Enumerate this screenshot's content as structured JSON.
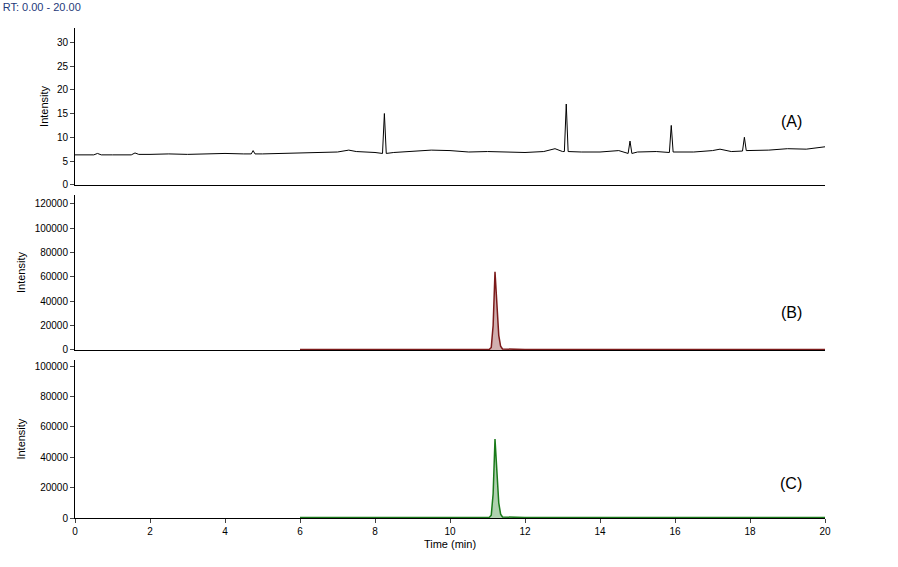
{
  "chart_data": [
    {
      "type": "line",
      "title": "RT: 0.00 - 20.00",
      "label": "(A)",
      "label_at": [
        19.1,
        13.3
      ],
      "ylabel": "Intensity",
      "color": "#000000",
      "tick_labels": "y",
      "x": [
        0,
        0.5,
        0.6,
        0.7,
        1,
        1.5,
        1.6,
        1.7,
        2,
        2.5,
        3,
        3.5,
        4,
        4.5,
        4.7,
        4.75,
        4.8,
        5,
        5.5,
        6,
        6.5,
        7,
        7.3,
        7.5,
        8,
        8.2,
        8.25,
        8.3,
        8.5,
        9,
        9.5,
        10,
        10.5,
        11,
        11.5,
        12,
        12.5,
        12.8,
        13,
        13.05,
        13.1,
        13.15,
        13.5,
        14,
        14.5,
        14.75,
        14.8,
        14.85,
        15,
        15.5,
        15.85,
        15.9,
        15.95,
        16.5,
        17,
        17.2,
        17.5,
        17.8,
        17.85,
        17.9,
        18.5,
        19,
        19.5,
        20
      ],
      "values": [
        6.3,
        6.3,
        6.6,
        6.3,
        6.3,
        6.3,
        6.7,
        6.4,
        6.4,
        6.5,
        6.4,
        6.5,
        6.6,
        6.5,
        6.5,
        7.2,
        6.5,
        6.5,
        6.6,
        6.6,
        6.7,
        6.9,
        7.3,
        7.0,
        6.8,
        6.6,
        15,
        6.6,
        6.8,
        7.0,
        7.3,
        7.2,
        6.9,
        7.0,
        6.9,
        6.8,
        7.0,
        7.6,
        7.0,
        7.0,
        17,
        7.0,
        6.9,
        6.9,
        7.2,
        6.6,
        9.2,
        6.6,
        6.9,
        7.0,
        6.8,
        12.5,
        6.9,
        6.9,
        7.2,
        7.5,
        7.0,
        7.1,
        10,
        7.2,
        7.3,
        7.6,
        7.5,
        8.0
      ],
      "xlim": [
        0,
        20
      ],
      "xticks": [
        0,
        2,
        4,
        6,
        8,
        10,
        12,
        14,
        16,
        18,
        20
      ],
      "ylim": [
        0,
        33
      ],
      "yticks": [
        0,
        5,
        10,
        15,
        20,
        25,
        30
      ]
    },
    {
      "type": "area",
      "label": "(B)",
      "label_at": [
        19.1,
        30400
      ],
      "ylabel": "Intensity",
      "color": "#7b1a1a",
      "tick_labels": "y",
      "x": [
        6,
        8,
        10,
        11,
        11.05,
        11.1,
        11.15,
        11.2,
        11.25,
        11.3,
        11.35,
        11.4,
        12,
        14,
        16,
        18,
        20
      ],
      "values": [
        300,
        300,
        300,
        300,
        500,
        2000,
        20000,
        64000,
        40000,
        12000,
        3000,
        800,
        300,
        300,
        300,
        300,
        300
      ],
      "xlim": [
        0,
        20
      ],
      "xticks": [
        0,
        2,
        4,
        6,
        8,
        10,
        12,
        14,
        16,
        18,
        20
      ],
      "ylim": [
        0,
        127000
      ],
      "yticks": [
        0,
        20000,
        40000,
        60000,
        80000,
        100000,
        120000
      ]
    },
    {
      "type": "area",
      "label": "(C)",
      "label_at": [
        19.1,
        23000
      ],
      "ylabel": "Intensity",
      "xlabel": "Time (min)",
      "color": "#1a7a1a",
      "x": [
        6,
        8,
        10,
        11,
        11.05,
        11.1,
        11.15,
        11.2,
        11.25,
        11.3,
        11.35,
        11.4,
        12,
        14,
        16,
        18,
        20
      ],
      "values": [
        300,
        300,
        300,
        300,
        500,
        1800,
        16000,
        52000,
        33000,
        10000,
        2500,
        700,
        300,
        300,
        300,
        300,
        300
      ],
      "xlim": [
        0,
        20
      ],
      "xticks": [
        0,
        2,
        4,
        6,
        8,
        10,
        12,
        14,
        16,
        18,
        20
      ],
      "ylim": [
        0,
        104000
      ],
      "yticks": [
        0,
        20000,
        40000,
        60000,
        80000,
        100000
      ]
    }
  ]
}
